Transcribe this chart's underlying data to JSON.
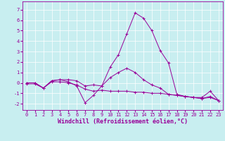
{
  "x": [
    0,
    1,
    2,
    3,
    4,
    5,
    6,
    7,
    8,
    9,
    10,
    11,
    12,
    13,
    14,
    15,
    16,
    17,
    18,
    19,
    20,
    21,
    22,
    23
  ],
  "curve1": [
    0,
    0,
    -0.5,
    0.2,
    0.3,
    0.1,
    -0.3,
    -1.9,
    -1.2,
    -0.3,
    1.5,
    2.7,
    4.7,
    6.7,
    6.2,
    5.0,
    3.1,
    1.9,
    -1.1,
    -1.3,
    -1.4,
    -1.4,
    -0.8,
    -1.7
  ],
  "curve2": [
    -0.1,
    -0.1,
    -0.5,
    0.1,
    0.1,
    0.0,
    -0.2,
    -0.6,
    -0.8,
    -0.7,
    -0.8,
    -0.8,
    -0.8,
    -0.9,
    -0.9,
    -1.0,
    -1.0,
    -1.1,
    -1.2,
    -1.3,
    -1.4,
    -1.5,
    -1.4,
    -1.7
  ],
  "curve3": [
    0,
    0,
    -0.5,
    0.2,
    0.3,
    0.3,
    0.2,
    -0.3,
    -0.2,
    -0.3,
    0.5,
    1.0,
    1.4,
    1.0,
    0.3,
    -0.2,
    -0.5,
    -1.1,
    -1.2,
    -1.3,
    -1.4,
    -1.5,
    -1.3,
    -1.7
  ],
  "line_color": "#990099",
  "bg_color": "#c8eef0",
  "grid_color": "#ffffff",
  "xlabel": "Windchill (Refroidissement éolien,°C)",
  "ylabel_ticks": [
    -2,
    -1,
    0,
    1,
    2,
    3,
    4,
    5,
    6,
    7
  ],
  "xlim": [
    -0.5,
    23.5
  ],
  "ylim": [
    -2.6,
    7.8
  ],
  "tick_fontsize": 5.0,
  "xlabel_fontsize": 6.0
}
